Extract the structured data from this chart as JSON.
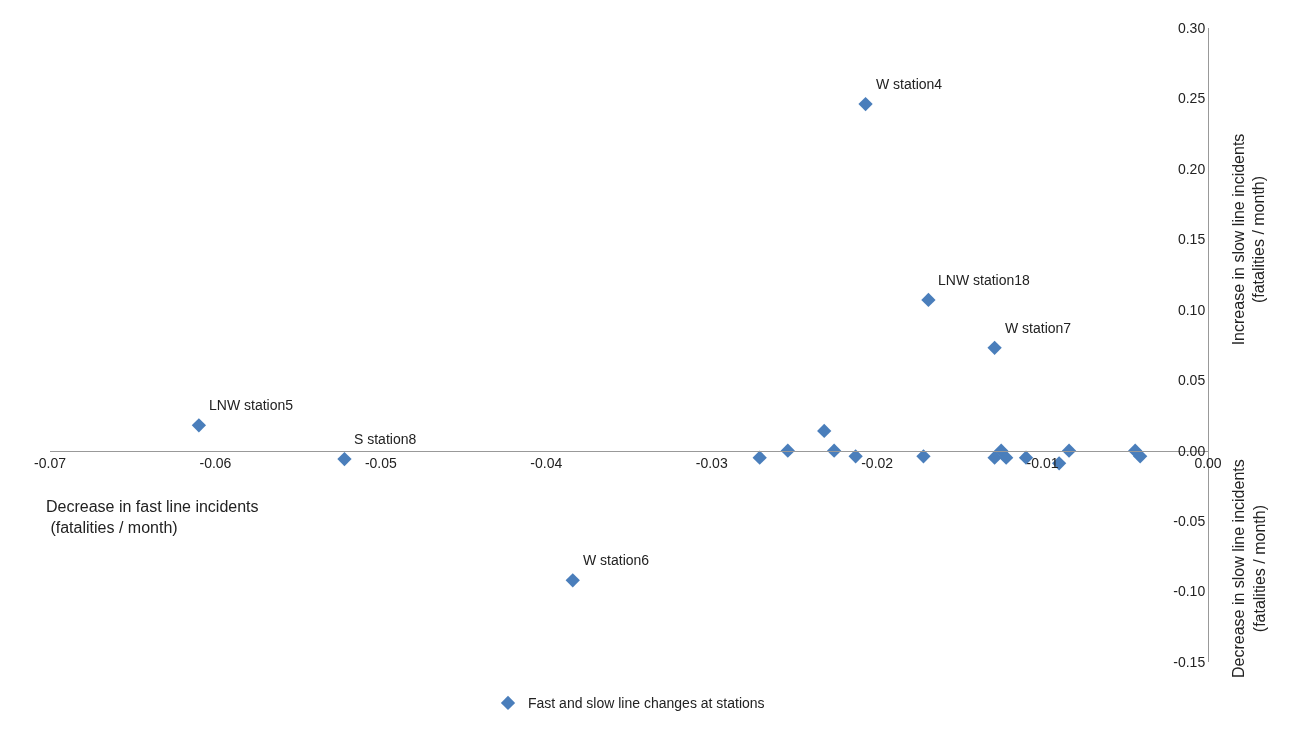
{
  "chart_data": {
    "type": "scatter",
    "xlabel": "Decrease in fast line incidents\n (fatalities / month)",
    "ylabel": "Increase in slow line incidents\n(fatalities / month)",
    "x": [
      -0.0207,
      -0.0169,
      -0.0129,
      -0.061,
      -0.0522,
      -0.0384,
      -0.0271,
      -0.0254,
      -0.0232,
      -0.0226,
      -0.0213,
      -0.0172,
      -0.0129,
      -0.0125,
      -0.0122,
      -0.011,
      -0.009,
      -0.0084,
      -0.0044,
      -0.0041
    ],
    "series": [
      {
        "name": "Fast and slow line changes at stations",
        "color": "#4a7ebb",
        "values": [
          0.246,
          0.107,
          0.073,
          0.018,
          -0.006,
          -0.092,
          -0.005,
          0.0,
          0.014,
          0.0,
          -0.004,
          -0.004,
          -0.005,
          0.0,
          -0.005,
          -0.005,
          -0.009,
          0.0,
          0.0,
          -0.004
        ]
      }
    ],
    "annotations": [
      {
        "text": "W station4",
        "x": -0.0207,
        "y": 0.246
      },
      {
        "text": "LNW station18",
        "x": -0.0169,
        "y": 0.107
      },
      {
        "text": "W station7",
        "x": -0.0129,
        "y": 0.073
      },
      {
        "text": "LNW station5",
        "x": -0.061,
        "y": 0.018
      },
      {
        "text": "S station8",
        "x": -0.0522,
        "y": -0.006
      },
      {
        "text": "W station6",
        "x": -0.0384,
        "y": -0.092
      },
      "Decrease in slow line incidents\n(fatalities / month)"
    ],
    "xlim": [
      -0.07,
      0.0
    ],
    "xticks": [
      {
        "value": -0.07,
        "label": "-0.07"
      },
      {
        "value": -0.06,
        "label": "-0.06"
      },
      {
        "value": -0.05,
        "label": "-0.05"
      },
      {
        "value": -0.04,
        "label": "-0.04"
      },
      {
        "value": -0.03,
        "label": "-0.03"
      },
      {
        "value": -0.02,
        "label": "-0.02"
      },
      {
        "value": -0.01,
        "label": "-0.01"
      },
      {
        "value": 0.0,
        "label": "0.00"
      }
    ],
    "ylim": [
      -0.15,
      0.3
    ],
    "yticks": [
      {
        "value": -0.15,
        "label": "-0.15"
      },
      {
        "value": -0.1,
        "label": "-0.10"
      },
      {
        "value": -0.05,
        "label": "-0.05"
      },
      {
        "value": 0.0,
        "label": "0.00"
      },
      {
        "value": 0.05,
        "label": "0.05"
      },
      {
        "value": 0.1,
        "label": "0.10"
      },
      {
        "value": 0.15,
        "label": "0.15"
      },
      {
        "value": 0.2,
        "label": "0.20"
      },
      {
        "value": 0.25,
        "label": "0.25"
      },
      {
        "value": 0.3,
        "label": "0.30"
      }
    ],
    "grid": false,
    "legend": "bottom",
    "marker": "diamond"
  }
}
